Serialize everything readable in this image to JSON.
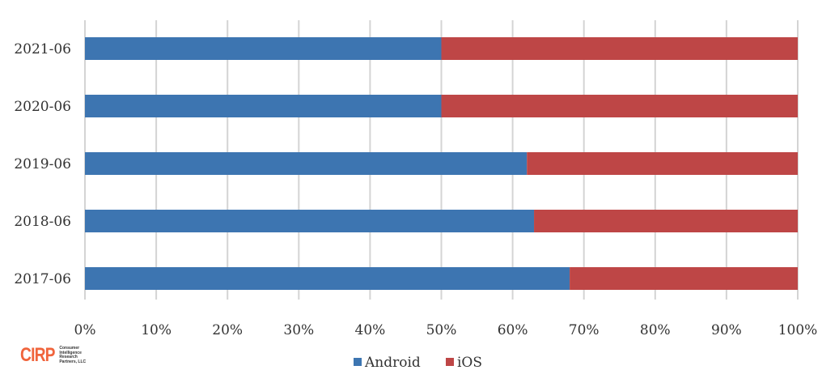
{
  "chart_data": {
    "type": "bar",
    "orientation": "horizontal",
    "stacked": true,
    "percent": true,
    "categories": [
      "2021-06",
      "2020-06",
      "2019-06",
      "2018-06",
      "2017-06"
    ],
    "series": [
      {
        "name": "Android",
        "color": "#3d75b1",
        "values": [
          50,
          50,
          62,
          63,
          68
        ]
      },
      {
        "name": "iOS",
        "color": "#be4646",
        "values": [
          50,
          50,
          38,
          37,
          32
        ]
      }
    ],
    "xlim": [
      0,
      100
    ],
    "xticks": [
      "0%",
      "10%",
      "20%",
      "30%",
      "40%",
      "50%",
      "60%",
      "70%",
      "80%",
      "90%",
      "100%"
    ],
    "grid": true,
    "legend": "bottom",
    "title": "",
    "xlabel": "",
    "ylabel": ""
  },
  "logo": {
    "mark": "CIRP",
    "lines": [
      "Consumer",
      "Intelligence",
      "Research",
      "Partners, LLC"
    ]
  }
}
